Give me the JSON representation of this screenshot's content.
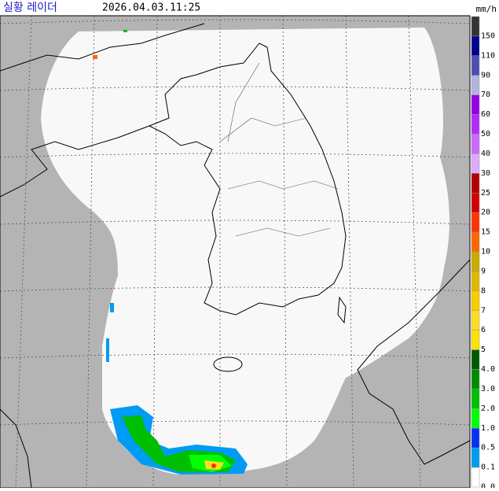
{
  "header": {
    "title": "실황 레이더",
    "time": "2026.04.03.11:25"
  },
  "legend": {
    "unit": "mm/h",
    "items": [
      {
        "label": "150",
        "color": "#333333"
      },
      {
        "label": "110",
        "color": "#000390"
      },
      {
        "label": "90",
        "color": "#4c4eb1"
      },
      {
        "label": "70",
        "color": "#b3b4de"
      },
      {
        "label": "60",
        "color": "#9300e4"
      },
      {
        "label": "50",
        "color": "#b329ff"
      },
      {
        "label": "40",
        "color": "#c969ff"
      },
      {
        "label": "30",
        "color": "#e0a9ff"
      },
      {
        "label": "25",
        "color": "#b40000"
      },
      {
        "label": "20",
        "color": "#d20000"
      },
      {
        "label": "15",
        "color": "#ff3300"
      },
      {
        "label": "10",
        "color": "#ff6600"
      },
      {
        "label": "9",
        "color": "#ccaa00"
      },
      {
        "label": "8",
        "color": "#e0b900"
      },
      {
        "label": "7",
        "color": "#f9cd00"
      },
      {
        "label": "6",
        "color": "#ffdc1f"
      },
      {
        "label": "5",
        "color": "#ffe100"
      },
      {
        "label": "4.0",
        "color": "#005a00"
      },
      {
        "label": "3.0",
        "color": "#008c00"
      },
      {
        "label": "2.0",
        "color": "#00be00"
      },
      {
        "label": "1.0",
        "color": "#00ff00"
      },
      {
        "label": "0.5",
        "color": "#0033f5"
      },
      {
        "label": "0.1",
        "color": "#009bf5"
      },
      {
        "label": "0.0",
        "color": "#ffffff"
      }
    ]
  }
}
